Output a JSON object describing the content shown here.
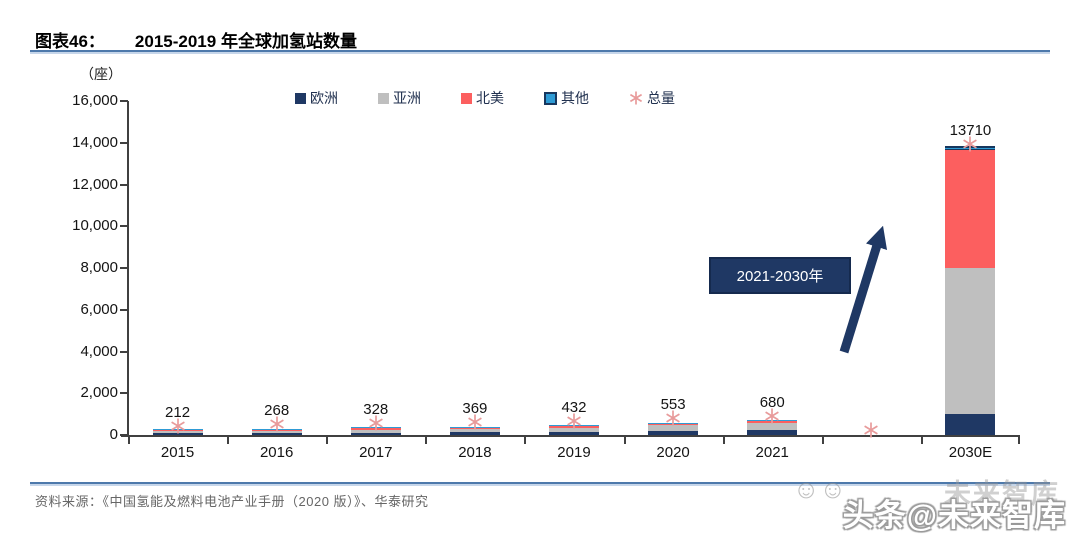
{
  "header": {
    "tag": "图表46：",
    "title": "2015-2019 年全球加氢站数量"
  },
  "chart": {
    "unit_label": "（座）",
    "legend": [
      {
        "label": "欧洲",
        "marker": "square",
        "color": "#1f3864"
      },
      {
        "label": "亚洲",
        "marker": "square",
        "color": "#bfbfbf"
      },
      {
        "label": "北美",
        "marker": "square",
        "color": "#fc5f5f"
      },
      {
        "label": "其他",
        "marker": "square",
        "color": "#2e9bd5",
        "border": "#17375e"
      },
      {
        "label": "总量",
        "marker": "asterisk",
        "color": "#e89b9b"
      }
    ],
    "annotation": {
      "label": "2021-2030年",
      "arrow": "up-right",
      "bg_color": "#1f3864",
      "text_color": "#ffffff"
    }
  },
  "chart_data": {
    "type": "bar",
    "stacked": true,
    "title": "2015-2019 年全球加氢站数量",
    "ylabel": "（座）",
    "categories": [
      "2015",
      "2016",
      "2017",
      "2018",
      "2019",
      "2020",
      "2021",
      "",
      "2030E"
    ],
    "series": [
      {
        "name": "欧洲",
        "color": "#1f3864",
        "values": [
          80,
          95,
          115,
          130,
          150,
          180,
          230,
          0,
          1000
        ]
      },
      {
        "name": "亚洲",
        "color": "#bfbfbf",
        "values": [
          90,
          115,
          140,
          160,
          200,
          280,
          350,
          0,
          7000
        ]
      },
      {
        "name": "北美",
        "color": "#fc5f5f",
        "values": [
          38,
          53,
          65,
          70,
          72,
          80,
          85,
          0,
          5650
        ]
      },
      {
        "name": "其他",
        "color": "#2e9bd5",
        "border": "#17375e",
        "values": [
          4,
          5,
          8,
          9,
          10,
          13,
          15,
          0,
          60
        ]
      }
    ],
    "totals": [
      212,
      268,
      328,
      369,
      432,
      553,
      680,
      0,
      13710
    ],
    "total_labels": [
      "212",
      "268",
      "328",
      "369",
      "432",
      "553",
      "680",
      "",
      "13710"
    ],
    "total_marker_series": "总量",
    "marker_color": "#e89b9b",
    "ylim": [
      0,
      16000
    ],
    "ytick_step": 2000,
    "ytick_labels": [
      "0",
      "2,000",
      "4,000",
      "6,000",
      "8,000",
      "10,000",
      "12,000",
      "14,000",
      "16,000"
    ],
    "legend_position": "top",
    "grid": false
  },
  "footer": {
    "source": "资料来源：《中国氢能及燃料电池产业手册（2020 版）》、华泰研究"
  },
  "watermark": {
    "main": "头条@未来智库",
    "ghost": "未来智库",
    "faces": "☺☺"
  }
}
